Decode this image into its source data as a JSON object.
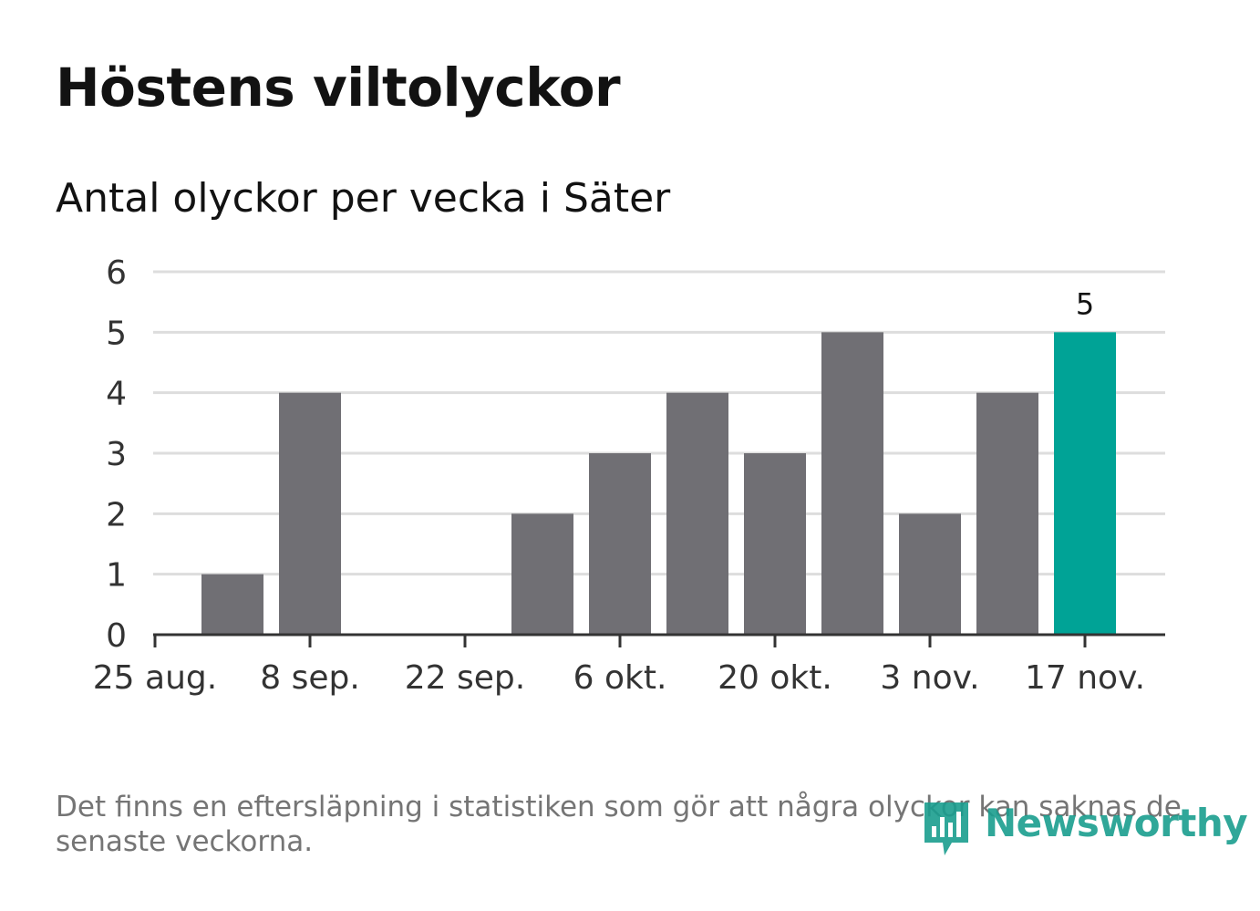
{
  "header": {
    "title": "Höstens viltolyckor",
    "subtitle": "Antal olyckor per vecka i Säter"
  },
  "footer": {
    "note": "Det finns en eftersläpning i statistiken som gör att några olyckor kan saknas de senaste veckorna.",
    "logo_text": "Newsworthy",
    "logo_icon": "newsworthy-logo-icon"
  },
  "colors": {
    "bar": "#706f74",
    "highlight": "#00a396",
    "grid": "#dddddd",
    "axis": "#333333",
    "logo": "#1a9e8f"
  },
  "chart_data": {
    "type": "bar",
    "title": "Höstens viltolyckor",
    "subtitle": "Antal olyckor per vecka i Säter",
    "xlabel": "",
    "ylabel": "",
    "x_tick_labels": [
      "25 aug.",
      "8 sep.",
      "22 sep.",
      "6 okt.",
      "20 okt.",
      "3 nov.",
      "17 nov."
    ],
    "categories": [
      "1 sep.",
      "8 sep.",
      "15 sep.",
      "22 sep.",
      "29 sep.",
      "6 okt.",
      "13 okt.",
      "20 okt.",
      "27 okt.",
      "3 nov.",
      "10 nov.",
      "17 nov."
    ],
    "values": [
      1,
      4,
      0,
      0,
      2,
      3,
      4,
      3,
      5,
      2,
      4,
      5
    ],
    "highlight_index": 11,
    "highlight_label": "5",
    "ylim": [
      0,
      6
    ],
    "yticks": [
      0,
      1,
      2,
      3,
      4,
      5,
      6
    ],
    "grid": true,
    "legend": "none"
  }
}
